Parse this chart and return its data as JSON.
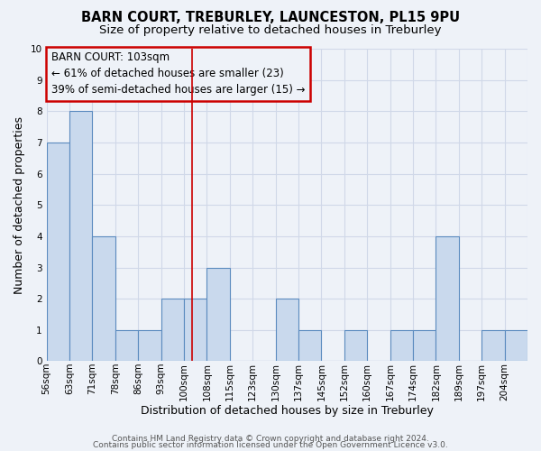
{
  "title": "BARN COURT, TREBURLEY, LAUNCESTON, PL15 9PU",
  "subtitle": "Size of property relative to detached houses in Treburley",
  "xlabel": "Distribution of detached houses by size in Treburley",
  "ylabel": "Number of detached properties",
  "bin_labels": [
    "56sqm",
    "63sqm",
    "71sqm",
    "78sqm",
    "86sqm",
    "93sqm",
    "100sqm",
    "108sqm",
    "115sqm",
    "123sqm",
    "130sqm",
    "137sqm",
    "145sqm",
    "152sqm",
    "160sqm",
    "167sqm",
    "174sqm",
    "182sqm",
    "189sqm",
    "197sqm",
    "204sqm"
  ],
  "bar_heights": [
    7,
    8,
    4,
    1,
    1,
    2,
    2,
    3,
    0,
    0,
    2,
    1,
    0,
    1,
    0,
    1,
    1,
    4,
    0,
    1,
    1
  ],
  "bar_color": "#c9d9ed",
  "bar_edge_color": "#5b8bbf",
  "bar_edge_width": 0.8,
  "ylim": [
    0,
    10
  ],
  "yticks": [
    0,
    1,
    2,
    3,
    4,
    5,
    6,
    7,
    8,
    9,
    10
  ],
  "vline_color": "#cc0000",
  "annotation_line1": "BARN COURT: 103sqm",
  "annotation_line2": "← 61% of detached houses are smaller (23)",
  "annotation_line3": "39% of semi-detached houses are larger (15) →",
  "annotation_box_color": "#cc0000",
  "grid_color": "#d0d8e8",
  "background_color": "#eef2f8",
  "footer_line1": "Contains HM Land Registry data © Crown copyright and database right 2024.",
  "footer_line2": "Contains public sector information licensed under the Open Government Licence v3.0.",
  "title_fontsize": 10.5,
  "subtitle_fontsize": 9.5,
  "axis_label_fontsize": 9,
  "tick_fontsize": 7.5,
  "annotation_fontsize": 8.5,
  "footer_fontsize": 6.5
}
